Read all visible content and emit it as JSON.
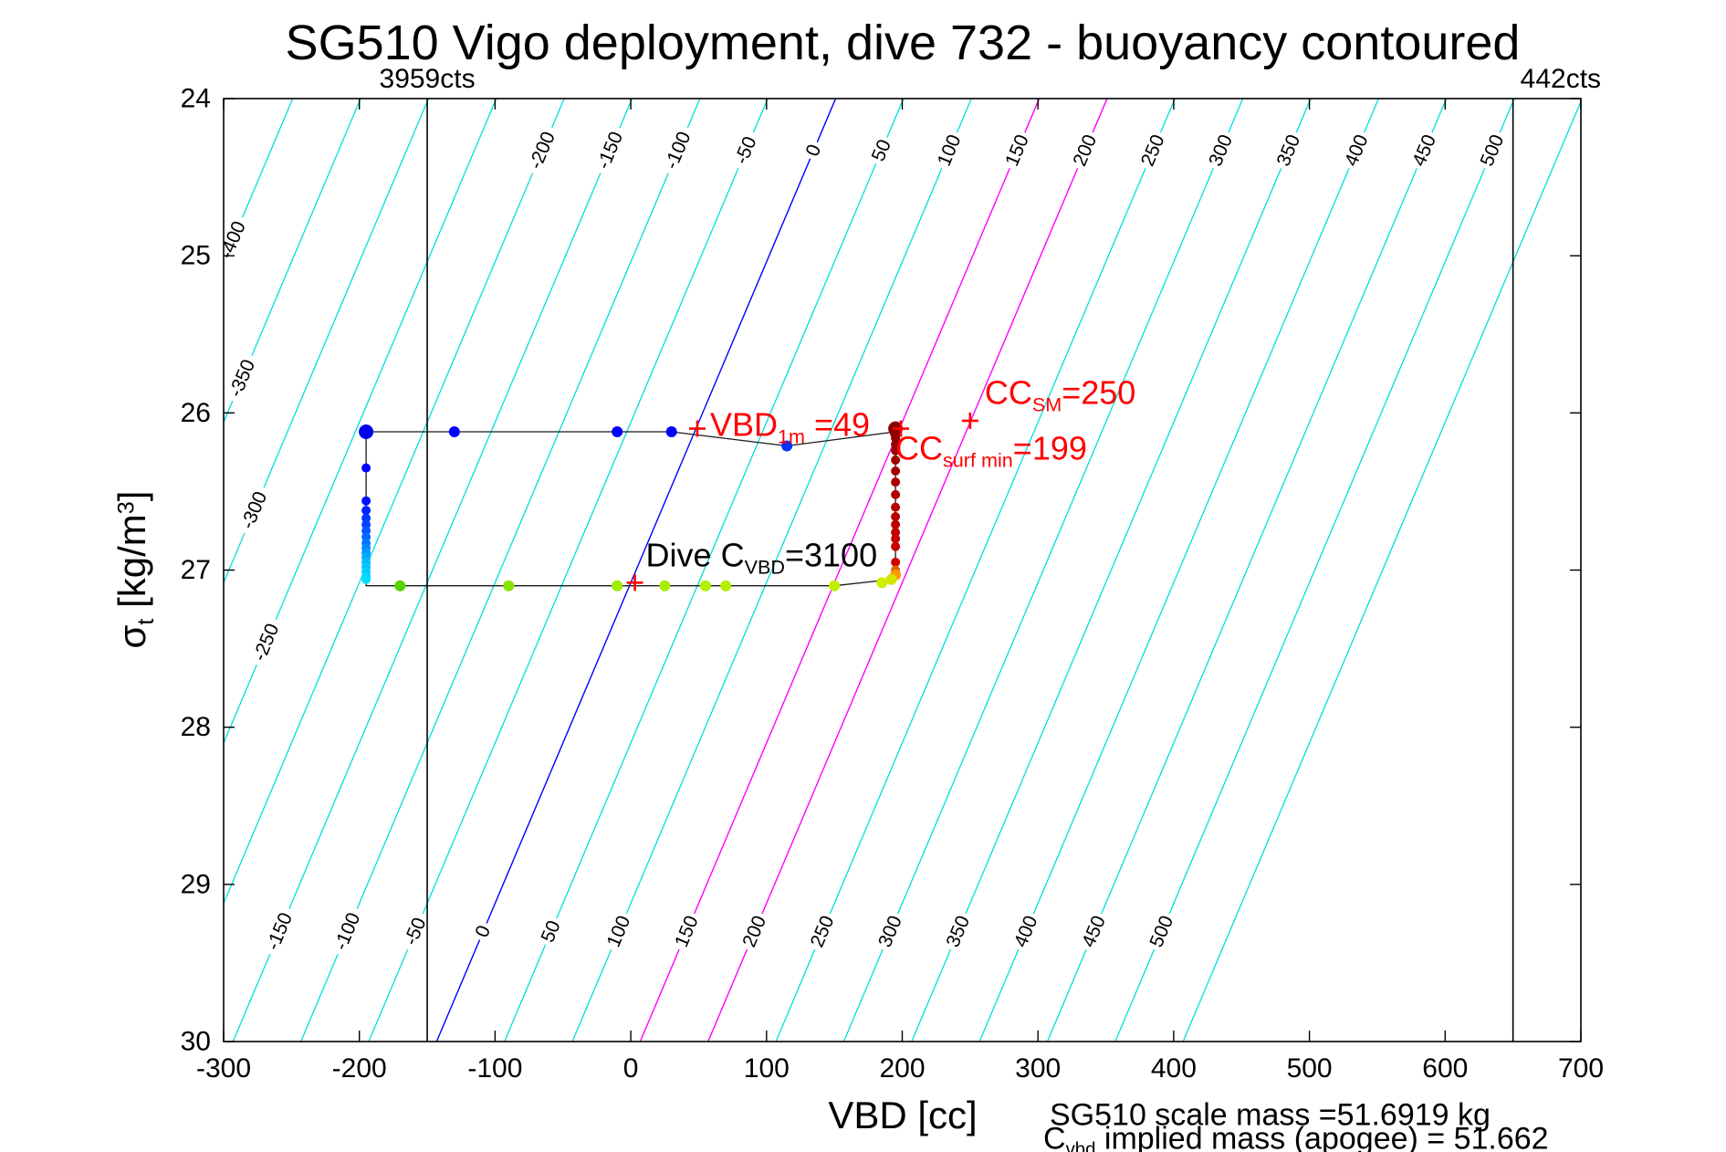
{
  "figure": {
    "title": "SG510 Vigo deployment, dive 732 - buoyancy contoured",
    "x_axis_label": "VBD [cc]",
    "y_axis_label": {
      "symbol": "σ",
      "subscript": "t",
      "middle": " [kg/m",
      "superscript": "3",
      "end": "]"
    },
    "left_limit_label": "3959cts",
    "right_limit_label": "442cts",
    "footer_line1": "SG510 scale mass =51.6919 kg",
    "footer_line2": {
      "pre": "C",
      "sub": "vbd",
      "post": " implied mass (apogee) = 51.662"
    }
  },
  "chart_data": {
    "type": "scatter",
    "title": "SG510 Vigo deployment, dive 732 - buoyancy contoured",
    "xlabel": "VBD [cc]",
    "ylabel": "sigma_t [kg/m3]",
    "xlim": [
      -300,
      700
    ],
    "ylim": [
      24,
      30
    ],
    "y_axis_inverted": true,
    "grid": false,
    "xticks": [
      -300,
      -200,
      -100,
      0,
      100,
      200,
      300,
      400,
      500,
      600,
      700
    ],
    "yticks": [
      24,
      25,
      26,
      27,
      28,
      29,
      30
    ],
    "contours": {
      "description": "parallel straight buoyancy contours in grams",
      "slope_cc_per_sigma": -49,
      "anchor_vbd": 49,
      "anchor_sigma": 26.08,
      "level_min": -450,
      "level_max": 550,
      "level_step": 50,
      "color_default": "#00dede",
      "special_levels": [
        {
          "level": 0,
          "color": "#0000ff"
        },
        {
          "level": 150,
          "color": "#ff00ff"
        },
        {
          "level": 200,
          "color": "#ff00ff"
        }
      ],
      "labels_top": {
        "sigma": 24.33,
        "levels": [
          -200,
          -150,
          -100,
          -50,
          0,
          50,
          100,
          150,
          200,
          250,
          300,
          350,
          400,
          450,
          500
        ]
      },
      "labels_bottom": {
        "sigma": 29.3,
        "levels": [
          -150,
          -100,
          -50,
          0,
          50,
          100,
          150,
          200,
          250,
          300,
          350,
          400,
          450,
          500
        ]
      },
      "labels_left": [
        {
          "level": -400,
          "sigma": 24.9
        },
        {
          "level": -350,
          "sigma": 25.78
        },
        {
          "level": -300,
          "sigma": 26.62
        },
        {
          "level": -250,
          "sigma": 27.46
        }
      ]
    },
    "limit_lines": [
      {
        "vbd": -150,
        "label": "3959cts",
        "color": "#000000"
      },
      {
        "vbd": 650,
        "label": "442cts",
        "color": "#000000"
      }
    ],
    "dive_path_color": "#1a1a1a",
    "dive_path": [
      [
        -195,
        26.12
      ],
      [
        -130,
        26.12
      ],
      [
        -10,
        26.12
      ],
      [
        30,
        26.12
      ],
      [
        115,
        26.21
      ],
      [
        195,
        26.12
      ],
      [
        195,
        27.03
      ],
      [
        192,
        27.06
      ],
      [
        150,
        27.1
      ],
      [
        -170,
        27.1
      ],
      [
        -195,
        27.1
      ],
      [
        -195,
        26.12
      ]
    ],
    "points": [
      [
        -195,
        26.12,
        "#0000ee",
        8
      ],
      [
        -130,
        26.12,
        "#0000ff",
        6
      ],
      [
        -10,
        26.12,
        "#0000ff",
        6
      ],
      [
        30,
        26.12,
        "#0000ff",
        6
      ],
      [
        115,
        26.21,
        "#0033ff",
        6
      ],
      [
        -195,
        26.35,
        "#0000ff",
        5
      ],
      [
        -195,
        26.56,
        "#0011ff",
        5
      ],
      [
        -195,
        26.62,
        "#0022ff",
        5
      ],
      [
        -195,
        26.67,
        "#0033ff",
        5
      ],
      [
        -195,
        26.71,
        "#0044ff",
        5
      ],
      [
        -195,
        26.75,
        "#0055ff",
        5
      ],
      [
        -195,
        26.79,
        "#0066ff",
        5
      ],
      [
        -195,
        26.83,
        "#0077ff",
        5
      ],
      [
        -195,
        26.86,
        "#0088ff",
        5
      ],
      [
        -195,
        26.89,
        "#0099ff",
        5
      ],
      [
        -195,
        26.92,
        "#00aaff",
        5
      ],
      [
        -195,
        26.95,
        "#00bbff",
        5
      ],
      [
        -195,
        26.98,
        "#00c4ff",
        5
      ],
      [
        -195,
        27.01,
        "#00ccff",
        5
      ],
      [
        -195,
        27.04,
        "#00d5ff",
        5
      ],
      [
        -195,
        27.06,
        "#00ddff",
        5
      ],
      [
        -170,
        27.1,
        "#55d400",
        6
      ],
      [
        -90,
        27.1,
        "#84e600",
        6
      ],
      [
        -10,
        27.1,
        "#9dee00",
        6
      ],
      [
        25,
        27.1,
        "#a8ee00",
        6
      ],
      [
        55,
        27.1,
        "#b0f000",
        6
      ],
      [
        70,
        27.1,
        "#b4f000",
        6
      ],
      [
        150,
        27.1,
        "#c0f000",
        6
      ],
      [
        185,
        27.08,
        "#ccf000",
        6
      ],
      [
        195,
        26.1,
        "#880000",
        8
      ],
      [
        195,
        26.13,
        "#8b0000",
        6
      ],
      [
        195,
        26.16,
        "#900000",
        5
      ],
      [
        195,
        26.2,
        "#950000",
        5
      ],
      [
        195,
        26.24,
        "#9a0000",
        5
      ],
      [
        195,
        26.3,
        "#a00000",
        5
      ],
      [
        195,
        26.37,
        "#a50000",
        5
      ],
      [
        195,
        26.44,
        "#aa0000",
        5
      ],
      [
        195,
        26.52,
        "#b00000",
        5
      ],
      [
        195,
        26.6,
        "#b40000",
        5
      ],
      [
        195,
        26.66,
        "#b80000",
        5
      ],
      [
        195,
        26.71,
        "#bc0000",
        5
      ],
      [
        195,
        26.76,
        "#c00000",
        5
      ],
      [
        195,
        26.8,
        "#c40000",
        5
      ],
      [
        195,
        26.85,
        "#c80000",
        5
      ],
      [
        195,
        26.95,
        "#d00000",
        5
      ],
      [
        195,
        27.0,
        "#e06000",
        5
      ],
      [
        195,
        27.03,
        "#ff9900",
        6
      ],
      [
        192,
        27.06,
        "#d6e600",
        6
      ]
    ],
    "annotations": {
      "vbd_1m": {
        "text_pre": "VBD",
        "text_sub": "1m",
        "text_post": " =49",
        "vbd": 49,
        "sigma": 26.1,
        "color": "#ff0000"
      },
      "cc_sm": {
        "text_pre": "CC",
        "text_sub": "SM",
        "text_post": "=250",
        "vbd": 250,
        "sigma": 26.05,
        "color": "#ff0000"
      },
      "cc_surf_min": {
        "text_pre": "CC",
        "text_sub": "surf min",
        "text_post": "=199",
        "vbd": 199,
        "sigma": 26.1,
        "color": "#ff0000"
      },
      "dive_cvbd": {
        "text_pre": "Dive C",
        "text_sub": "VBD",
        "text_post": "=3100",
        "vbd": 3,
        "sigma": 27.08,
        "color": "#000000",
        "marker_color": "#ff0000"
      }
    }
  }
}
